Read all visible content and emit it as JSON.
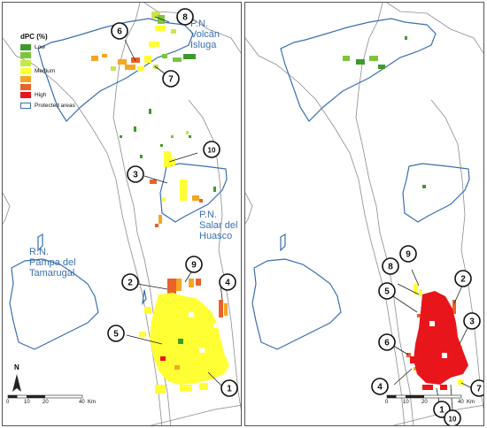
{
  "legend": {
    "title": "dPC (%)",
    "items": [
      {
        "label": "Low",
        "color": "#3f9a2c"
      },
      {
        "label": "",
        "color": "#7cc53a"
      },
      {
        "label": "",
        "color": "#c7e64b"
      },
      {
        "label": "Medium",
        "color": "#ffff33"
      },
      {
        "label": "",
        "color": "#f5a623"
      },
      {
        "label": "",
        "color": "#e8622a"
      },
      {
        "label": "High",
        "color": "#e8151b"
      }
    ],
    "protected_label": "Protected areas"
  },
  "protected_areas": [
    {
      "id": "volcan",
      "line1": "P.N.",
      "line2": "Volcán",
      "line3": "Isluga"
    },
    {
      "id": "salar",
      "line1": "P.N.",
      "line2": "Salar del",
      "line3": "Huasco"
    },
    {
      "id": "tamarugal",
      "line1": "R.N.",
      "line2": "Pampa del",
      "line3": "Tamarugal"
    }
  ],
  "north": "N",
  "scale": {
    "ticks": [
      "0",
      "10",
      "20",
      "40"
    ],
    "unit": "Km"
  },
  "left_callouts": [
    "1",
    "2",
    "3",
    "4",
    "5",
    "6",
    "7",
    "8",
    "9",
    "10"
  ],
  "right_callouts": [
    "1",
    "2",
    "3",
    "4",
    "5",
    "6",
    "7",
    "8",
    "9",
    "10"
  ],
  "colors": {
    "outline": "#3a6fb0",
    "border": "#8c8c8c"
  }
}
